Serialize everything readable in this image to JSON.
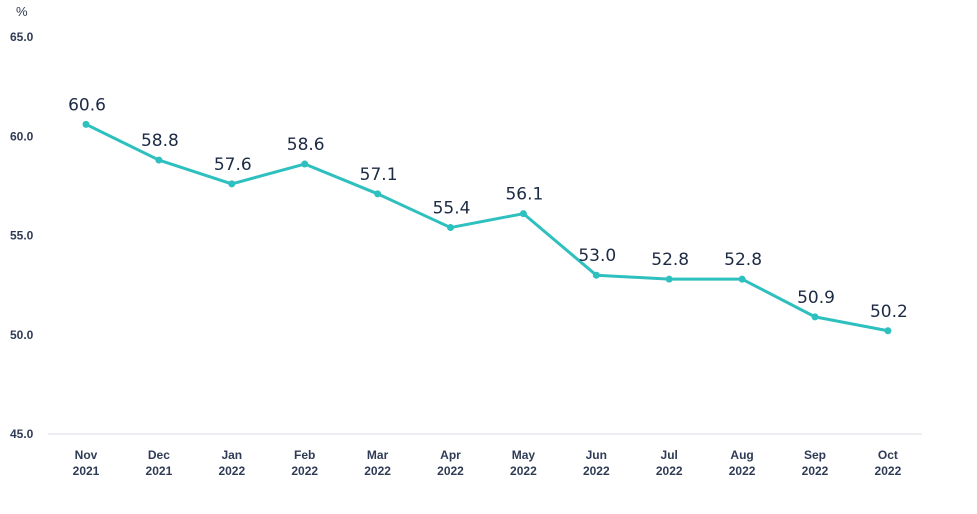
{
  "chart_data": {
    "type": "line",
    "unit_label": "%",
    "categories": [
      [
        "Nov",
        "2021"
      ],
      [
        "Dec",
        "2021"
      ],
      [
        "Jan",
        "2022"
      ],
      [
        "Feb",
        "2022"
      ],
      [
        "Mar",
        "2022"
      ],
      [
        "Apr",
        "2022"
      ],
      [
        "May",
        "2022"
      ],
      [
        "Jun",
        "2022"
      ],
      [
        "Jul",
        "2022"
      ],
      [
        "Aug",
        "2022"
      ],
      [
        "Sep",
        "2022"
      ],
      [
        "Oct",
        "2022"
      ]
    ],
    "series": [
      {
        "values": [
          60.6,
          58.8,
          57.6,
          58.6,
          57.1,
          55.4,
          56.1,
          53.0,
          52.8,
          52.8,
          50.9,
          50.2
        ],
        "labels": [
          "60.6",
          "58.8",
          "57.6",
          "58.6",
          "57.1",
          "55.4",
          "56.1",
          "53.0",
          "52.8",
          "52.8",
          "50.9",
          "50.2"
        ],
        "color": "#2ebfbf"
      }
    ],
    "ylim": [
      45.0,
      65.0
    ],
    "yticks": [
      45.0,
      50.0,
      55.0,
      60.0,
      65.0
    ],
    "ytick_labels": [
      "45.0",
      "50.0",
      "55.0",
      "60.0",
      "65.0"
    ],
    "grid": false,
    "axis_color": "#d9dde3",
    "text_color": "#2f3b55"
  }
}
